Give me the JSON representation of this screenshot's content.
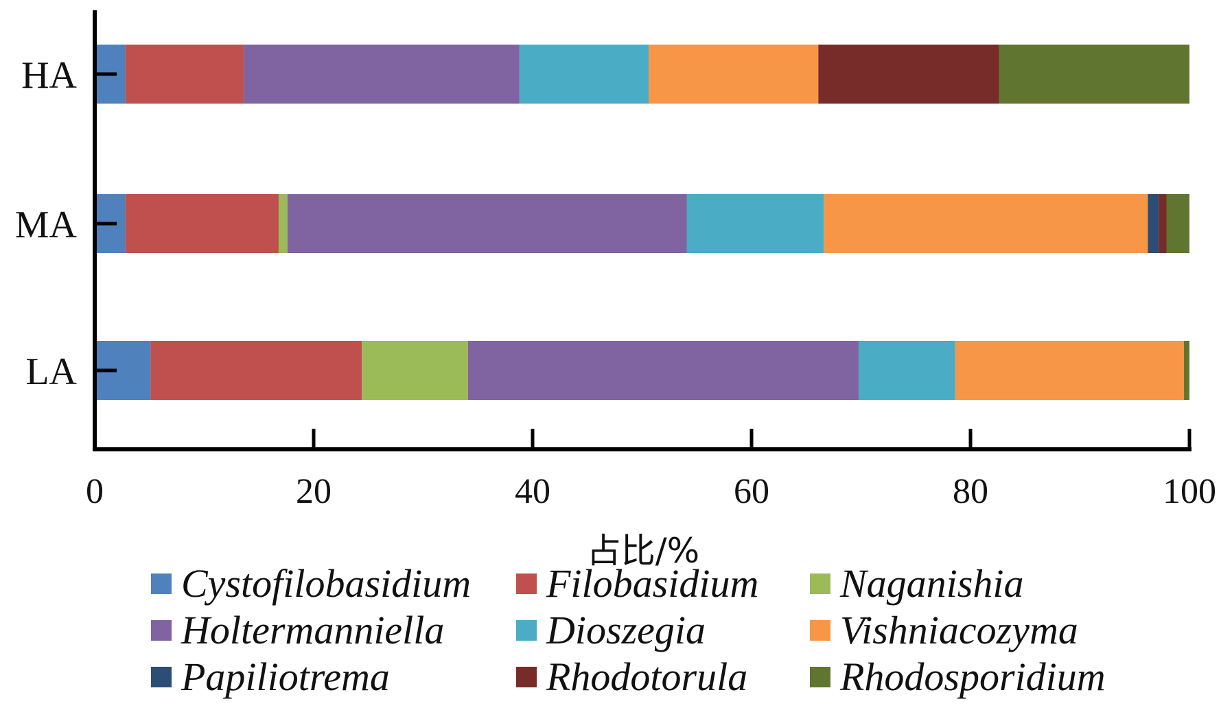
{
  "chart_data": {
    "type": "bar",
    "orientation": "horizontal",
    "stacked": true,
    "categories": [
      "HA",
      "MA",
      "LA"
    ],
    "xlabel": "占比/%",
    "ylabel": "",
    "xlim": [
      0,
      100
    ],
    "xticks": [
      "0",
      "20",
      "40",
      "60",
      "80",
      "100"
    ],
    "grid": false,
    "legend_position": "bottom",
    "series": [
      {
        "name": "Cystofilobasidium",
        "color": "#4F81BD",
        "values": [
          2.8,
          2.8,
          5.1
        ]
      },
      {
        "name": "Filobasidium",
        "color": "#C0504D",
        "values": [
          10.8,
          14.0,
          19.3
        ]
      },
      {
        "name": "Naganishia",
        "color": "#9BBB59",
        "values": [
          0.0,
          0.8,
          9.7
        ]
      },
      {
        "name": "Holtermanniella",
        "color": "#8064A2",
        "values": [
          25.2,
          36.5,
          35.7
        ]
      },
      {
        "name": "Dioszegia",
        "color": "#4BACC6",
        "values": [
          11.8,
          12.5,
          8.8
        ]
      },
      {
        "name": "Vishniacozyma",
        "color": "#F79646",
        "values": [
          15.5,
          29.6,
          20.9
        ]
      },
      {
        "name": "Papiliotrema",
        "color": "#2C4D75",
        "values": [
          0.0,
          1.0,
          0.0
        ]
      },
      {
        "name": "Rhodotorula",
        "color": "#772C2A",
        "values": [
          16.5,
          0.7,
          0.0
        ]
      },
      {
        "name": "Rhodosporidium",
        "color": "#5F7530",
        "values": [
          17.4,
          2.1,
          0.5
        ]
      }
    ]
  }
}
